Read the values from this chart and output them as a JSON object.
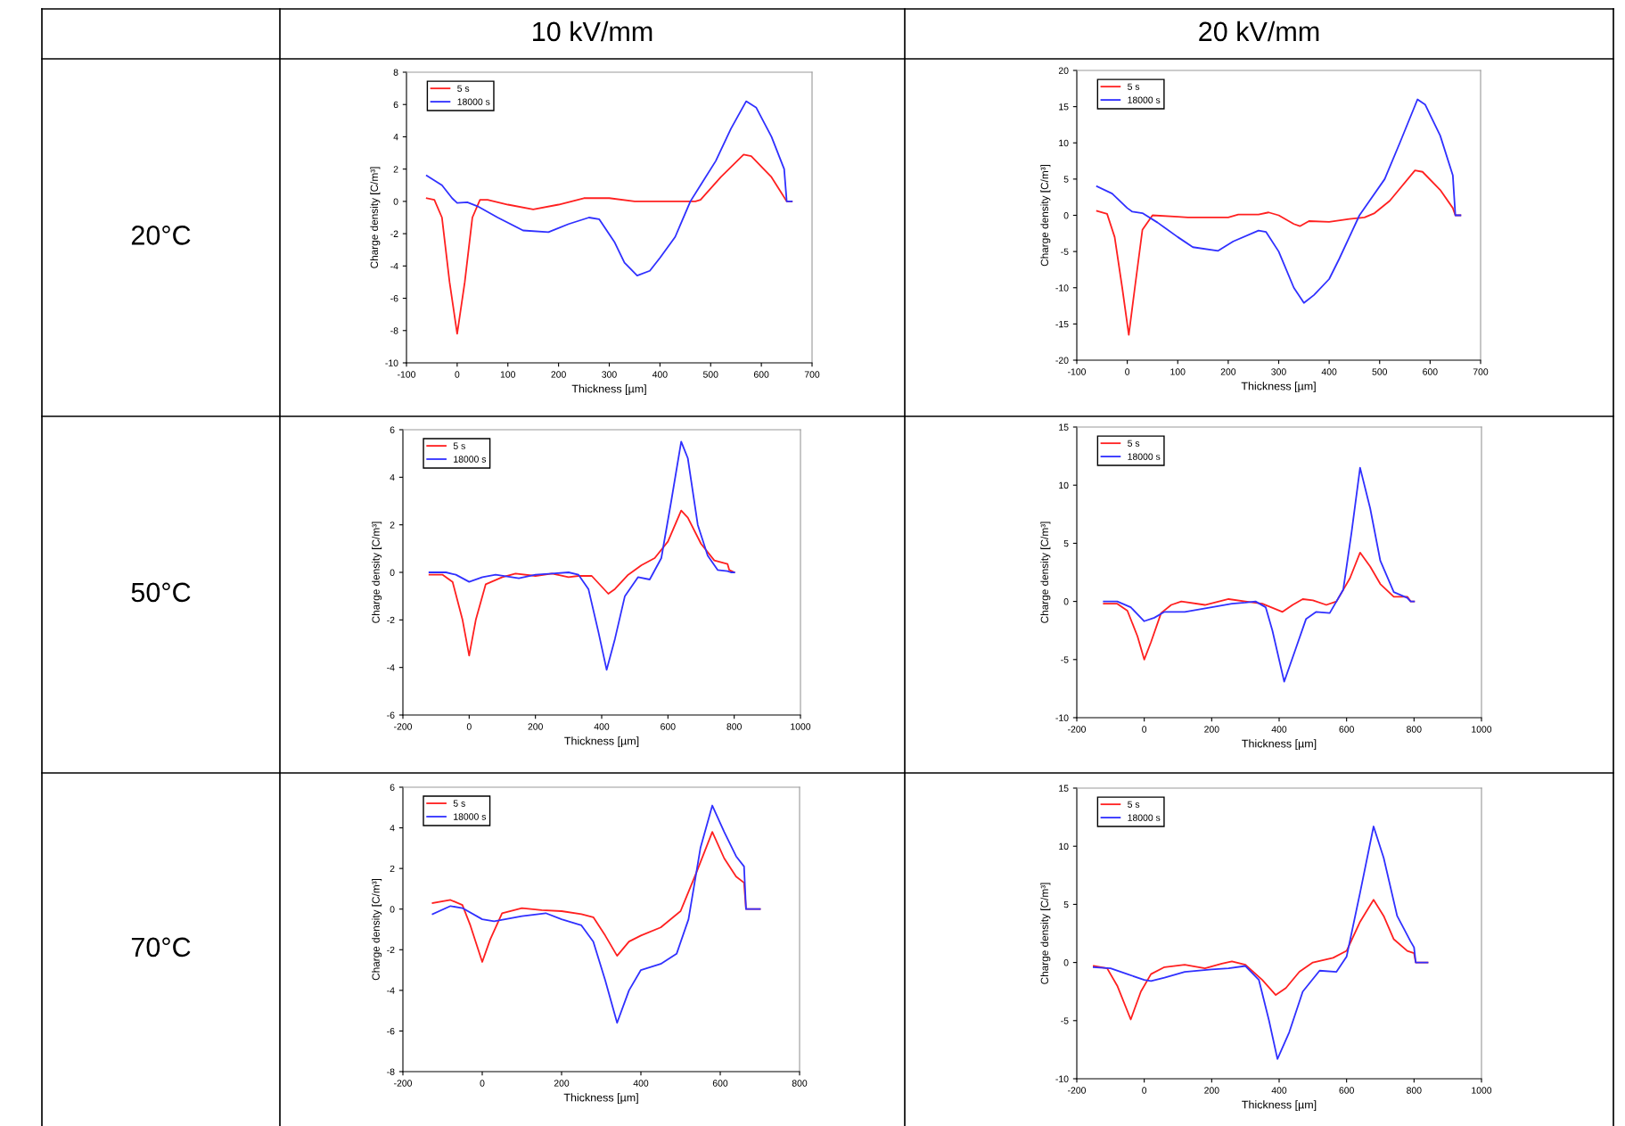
{
  "chart_data": [
    {
      "type": "line",
      "title": "10 kV/mm",
      "annotations": [
        "20°C"
      ],
      "xlabel": "Thickness [µm]",
      "ylabel": "Charge density [C/m³]",
      "xlim": [
        -100,
        700
      ],
      "xticks": [
        -100,
        0,
        100,
        200,
        300,
        400,
        500,
        600,
        700
      ],
      "ylim": [
        -10,
        8
      ],
      "yticks": [
        -10,
        -8,
        -6,
        -4,
        -2,
        0,
        2,
        4,
        6,
        8
      ],
      "legend": "top left",
      "grid": false,
      "marker": "none",
      "line_style": "solid",
      "series": [
        {
          "name": "5 s",
          "color": "#ff2020",
          "x": [
            -60,
            -45,
            -30,
            -15,
            0,
            15,
            30,
            45,
            60,
            100,
            150,
            200,
            250,
            300,
            350,
            400,
            470,
            480,
            520,
            565,
            580,
            620,
            640,
            650,
            660
          ],
          "values": [
            0.2,
            0.1,
            -1,
            -5,
            -8.2,
            -5,
            -1,
            0.1,
            0.1,
            -0.2,
            -0.5,
            -0.2,
            0.2,
            0.2,
            0,
            0,
            0,
            0.1,
            1.5,
            2.9,
            2.8,
            1.5,
            0.5,
            0,
            0
          ]
        },
        {
          "name": "18000 s",
          "color": "#3030ff",
          "x": [
            -60,
            -30,
            -10,
            0,
            20,
            40,
            80,
            130,
            180,
            220,
            260,
            280,
            310,
            330,
            355,
            380,
            400,
            430,
            460,
            480,
            510,
            540,
            570,
            590,
            620,
            645,
            650,
            660
          ],
          "values": [
            1.6,
            1.0,
            0.2,
            -0.1,
            -0.05,
            -0.3,
            -1.0,
            -1.8,
            -1.9,
            -1.4,
            -1.0,
            -1.1,
            -2.5,
            -3.8,
            -4.6,
            -4.3,
            -3.5,
            -2.2,
            0,
            1,
            2.5,
            4.5,
            6.2,
            5.8,
            4,
            2,
            0,
            0
          ]
        }
      ]
    },
    {
      "type": "line",
      "title": "20 kV/mm",
      "xlabel": "Thickness [µm]",
      "ylabel": "Charge density [C/m³]",
      "xlim": [
        -100,
        700
      ],
      "xticks": [
        -100,
        0,
        100,
        200,
        300,
        400,
        500,
        600,
        700
      ],
      "ylim": [
        -20,
        20
      ],
      "yticks": [
        -20,
        -15,
        -10,
        -5,
        0,
        5,
        10,
        15,
        20
      ],
      "legend": "top left",
      "grid": false,
      "marker": "none",
      "line_style": "solid",
      "series": [
        {
          "name": "5 s",
          "color": "#ff2020",
          "x": [
            -60,
            -40,
            -25,
            -10,
            3,
            15,
            30,
            50,
            100,
            120,
            200,
            220,
            260,
            280,
            300,
            330,
            342,
            360,
            400,
            440,
            470,
            490,
            520,
            570,
            585,
            620,
            645,
            650,
            660
          ],
          "values": [
            0.6,
            0.2,
            -3,
            -10,
            -16.5,
            -10,
            -2,
            0,
            -0.2,
            -0.3,
            -0.3,
            0.1,
            0.1,
            0.4,
            0,
            -1.2,
            -1.5,
            -0.8,
            -0.9,
            -0.5,
            -0.3,
            0.3,
            2,
            6.2,
            6,
            3.5,
            1,
            0,
            0
          ]
        },
        {
          "name": "18000 s",
          "color": "#3030ff",
          "x": [
            -60,
            -30,
            0,
            10,
            30,
            60,
            100,
            130,
            180,
            210,
            260,
            275,
            300,
            330,
            350,
            370,
            400,
            420,
            440,
            460,
            480,
            510,
            540,
            575,
            590,
            620,
            645,
            650,
            660
          ],
          "values": [
            4,
            3,
            1,
            0.5,
            0.3,
            -1,
            -3,
            -4.4,
            -4.9,
            -3.6,
            -2.1,
            -2.3,
            -5,
            -10,
            -12.1,
            -11,
            -8.8,
            -6,
            -3,
            0,
            2,
            5,
            10,
            16,
            15.3,
            11,
            5.5,
            0,
            0
          ]
        }
      ]
    },
    {
      "type": "line",
      "annotations": [
        "50°C"
      ],
      "xlabel": "Thickness [µm]",
      "ylabel": "Charge density [C/m³]",
      "xlim": [
        -200,
        1000
      ],
      "xticks": [
        -200,
        0,
        200,
        400,
        600,
        800,
        1000
      ],
      "ylim": [
        -6,
        6
      ],
      "yticks": [
        -6,
        -4,
        -2,
        0,
        2,
        4,
        6
      ],
      "legend": "top left",
      "grid": false,
      "marker": "none",
      "line_style": "solid",
      "series": [
        {
          "name": "5 s",
          "color": "#ff2020",
          "x": [
            -120,
            -80,
            -50,
            -20,
            0,
            20,
            50,
            100,
            140,
            200,
            250,
            300,
            330,
            370,
            400,
            420,
            440,
            480,
            520,
            560,
            600,
            640,
            660,
            700,
            740,
            780,
            785,
            800
          ],
          "values": [
            -0.1,
            -0.1,
            -0.4,
            -2,
            -3.5,
            -2,
            -0.5,
            -0.2,
            -0.05,
            -0.15,
            -0.05,
            -0.2,
            -0.15,
            -0.15,
            -0.6,
            -0.9,
            -0.7,
            -0.1,
            0.3,
            0.6,
            1.3,
            2.6,
            2.3,
            1.2,
            0.5,
            0.35,
            0.1,
            0
          ]
        },
        {
          "name": "18000 s",
          "color": "#3030ff",
          "x": [
            -120,
            -70,
            -40,
            0,
            40,
            80,
            150,
            200,
            250,
            300,
            330,
            360,
            390,
            415,
            440,
            470,
            510,
            545,
            580,
            610,
            640,
            660,
            690,
            720,
            750,
            780,
            790,
            800
          ],
          "values": [
            0,
            0,
            -0.1,
            -0.4,
            -0.2,
            -0.1,
            -0.25,
            -0.1,
            -0.05,
            0,
            -0.1,
            -0.7,
            -2.5,
            -4.1,
            -2.8,
            -1,
            -0.2,
            -0.3,
            0.6,
            3,
            5.5,
            4.8,
            2,
            0.7,
            0.1,
            0.05,
            0,
            0
          ]
        }
      ]
    },
    {
      "type": "line",
      "xlabel": "Thickness [µm]",
      "ylabel": "Charge density [C/m³]",
      "xlim": [
        -200,
        1000
      ],
      "xticks": [
        -200,
        0,
        200,
        400,
        600,
        800,
        1000
      ],
      "ylim": [
        -10,
        15
      ],
      "yticks": [
        -10,
        -5,
        0,
        5,
        10,
        15
      ],
      "legend": "top left",
      "grid": false,
      "marker": "none",
      "line_style": "solid",
      "series": [
        {
          "name": "5 s",
          "color": "#ff2020",
          "x": [
            -120,
            -80,
            -50,
            -20,
            0,
            20,
            50,
            80,
            110,
            180,
            250,
            300,
            350,
            410,
            440,
            470,
            500,
            540,
            570,
            610,
            640,
            670,
            700,
            740,
            780,
            790,
            800
          ],
          "values": [
            -0.2,
            -0.2,
            -0.8,
            -3,
            -5,
            -3.5,
            -1,
            -0.3,
            0,
            -0.3,
            0.2,
            0,
            -0.2,
            -0.9,
            -0.3,
            0.2,
            0.1,
            -0.3,
            0,
            2,
            4.2,
            3,
            1.5,
            0.4,
            0.4,
            0,
            0
          ]
        },
        {
          "name": "18000 s",
          "color": "#3030ff",
          "x": [
            -120,
            -80,
            -40,
            0,
            30,
            60,
            120,
            200,
            260,
            300,
            330,
            360,
            380,
            415,
            450,
            480,
            510,
            550,
            590,
            615,
            640,
            670,
            700,
            740,
            780,
            790,
            800
          ],
          "values": [
            0,
            0,
            -0.5,
            -1.7,
            -1.4,
            -0.9,
            -0.9,
            -0.5,
            -0.2,
            -0.1,
            0,
            -0.5,
            -2.5,
            -6.9,
            -4,
            -1.5,
            -0.9,
            -1,
            1,
            6,
            11.5,
            8,
            3.5,
            0.8,
            0.3,
            0,
            0
          ]
        }
      ]
    },
    {
      "type": "line",
      "annotations": [
        "70°C"
      ],
      "xlabel": "Thickness [µm]",
      "ylabel": "Charge density [C/m³]",
      "xlim": [
        -200,
        800
      ],
      "xticks": [
        -200,
        0,
        200,
        400,
        600,
        800
      ],
      "ylim": [
        -8,
        6
      ],
      "yticks": [
        -8,
        -6,
        -4,
        -2,
        0,
        2,
        4,
        6
      ],
      "legend": "top left",
      "grid": false,
      "marker": "none",
      "line_style": "solid",
      "series": [
        {
          "name": "5 s",
          "color": "#ff2020",
          "x": [
            -125,
            -80,
            -50,
            -30,
            0,
            20,
            50,
            100,
            150,
            200,
            250,
            280,
            310,
            340,
            370,
            400,
            450,
            500,
            540,
            580,
            610,
            640,
            660,
            665,
            700
          ],
          "values": [
            0.3,
            0.45,
            0.2,
            -0.8,
            -2.6,
            -1.5,
            -0.2,
            0.05,
            -0.05,
            -0.1,
            -0.25,
            -0.4,
            -1.3,
            -2.3,
            -1.6,
            -1.3,
            -0.9,
            -0.1,
            1.8,
            3.8,
            2.5,
            1.6,
            1.3,
            0,
            0
          ]
        },
        {
          "name": "18000 s",
          "color": "#3030ff",
          "x": [
            -125,
            -80,
            -50,
            0,
            30,
            100,
            160,
            200,
            250,
            280,
            310,
            340,
            370,
            400,
            450,
            490,
            520,
            550,
            580,
            610,
            640,
            660,
            665,
            700
          ],
          "values": [
            -0.25,
            0.15,
            0.05,
            -0.5,
            -0.6,
            -0.35,
            -0.2,
            -0.5,
            -0.8,
            -1.6,
            -3.5,
            -5.6,
            -4,
            -3,
            -2.7,
            -2.2,
            -0.5,
            3,
            5.1,
            3.8,
            2.6,
            2.1,
            0,
            0
          ]
        }
      ]
    },
    {
      "type": "line",
      "xlabel": "Thickness [µm]",
      "ylabel": "Charge density [C/m³]",
      "xlim": [
        -200,
        1000
      ],
      "xticks": [
        -200,
        0,
        200,
        400,
        600,
        800,
        1000
      ],
      "ylim": [
        -10,
        15
      ],
      "yticks": [
        -10,
        -5,
        0,
        5,
        10,
        15
      ],
      "legend": "top left",
      "grid": false,
      "marker": "none",
      "line_style": "solid",
      "series": [
        {
          "name": "5 s",
          "color": "#ff2020",
          "x": [
            -150,
            -110,
            -80,
            -40,
            -10,
            20,
            60,
            120,
            180,
            230,
            260,
            300,
            350,
            390,
            420,
            460,
            500,
            560,
            600,
            640,
            680,
            710,
            740,
            780,
            800,
            805,
            840
          ],
          "values": [
            -0.3,
            -0.5,
            -2,
            -4.9,
            -2.5,
            -1,
            -0.4,
            -0.2,
            -0.5,
            -0.1,
            0.1,
            -0.2,
            -1.5,
            -2.8,
            -2.2,
            -0.8,
            0,
            0.4,
            1,
            3.5,
            5.4,
            4,
            2,
            1,
            0.8,
            0,
            0
          ]
        },
        {
          "name": "18000 s",
          "color": "#3030ff",
          "x": [
            -150,
            -100,
            -50,
            0,
            20,
            60,
            120,
            200,
            250,
            300,
            340,
            370,
            395,
            430,
            470,
            520,
            570,
            600,
            640,
            680,
            710,
            750,
            790,
            800,
            805,
            840
          ],
          "values": [
            -0.4,
            -0.5,
            -1,
            -1.5,
            -1.6,
            -1.3,
            -0.8,
            -0.6,
            -0.5,
            -0.3,
            -1.5,
            -5,
            -8.3,
            -6,
            -2.5,
            -0.7,
            -0.8,
            0.5,
            6,
            11.7,
            9,
            4,
            1.8,
            1.3,
            0,
            0
          ]
        }
      ]
    }
  ]
}
